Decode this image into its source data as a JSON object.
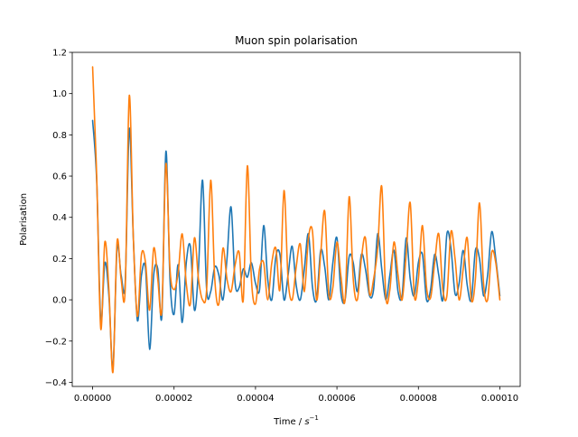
{
  "chart_data": {
    "type": "line",
    "title": "Muon spin polarisation",
    "xlabel_prefix": "Time / ",
    "xlabel_unit": "s",
    "xlabel_exponent": "−1",
    "ylabel": "Polarisation",
    "xlim": [
      -5e-06,
      0.000105
    ],
    "ylim": [
      -0.42,
      1.2
    ],
    "grid": false,
    "x_ticks": [
      {
        "value": 0.0,
        "label": "0.00000"
      },
      {
        "value": 2e-05,
        "label": "0.00002"
      },
      {
        "value": 4e-05,
        "label": "0.00004"
      },
      {
        "value": 6e-05,
        "label": "0.00006"
      },
      {
        "value": 8e-05,
        "label": "0.00008"
      },
      {
        "value": 0.0001,
        "label": "0.00010"
      }
    ],
    "y_ticks": [
      {
        "value": -0.4,
        "label": "−0.4"
      },
      {
        "value": -0.2,
        "label": "−0.2"
      },
      {
        "value": 0.0,
        "label": "0.0"
      },
      {
        "value": 0.2,
        "label": "0.2"
      },
      {
        "value": 0.4,
        "label": "0.4"
      },
      {
        "value": 0.6,
        "label": "0.6"
      },
      {
        "value": 0.8,
        "label": "0.8"
      },
      {
        "value": 1.0,
        "label": "1.0"
      },
      {
        "value": 1.2,
        "label": "1.2"
      }
    ],
    "series": [
      {
        "color": "#1f77b4",
        "points": [
          [
            0.0,
            0.87
          ],
          [
            1e-06,
            0.58
          ],
          [
            2e-06,
            -0.1
          ],
          [
            3e-06,
            0.18
          ],
          [
            4e-06,
            0.02
          ],
          [
            5e-06,
            -0.33
          ],
          [
            6e-06,
            0.25
          ],
          [
            7e-06,
            0.12
          ],
          [
            8e-06,
            0.08
          ],
          [
            9e-06,
            0.83
          ],
          [
            1e-05,
            0.3
          ],
          [
            1.1e-05,
            -0.1
          ],
          [
            1.2e-05,
            0.12
          ],
          [
            1.3e-05,
            0.15
          ],
          [
            1.4e-05,
            -0.24
          ],
          [
            1.5e-05,
            0.12
          ],
          [
            1.6e-05,
            0.15
          ],
          [
            1.7e-05,
            -0.08
          ],
          [
            1.8e-05,
            0.72
          ],
          [
            1.9e-05,
            0.1
          ],
          [
            2e-05,
            -0.07
          ],
          [
            2.1e-05,
            0.17
          ],
          [
            2.2e-05,
            -0.11
          ],
          [
            2.3e-05,
            0.18
          ],
          [
            2.4e-05,
            0.26
          ],
          [
            2.5e-05,
            -0.05
          ],
          [
            2.6e-05,
            0.15
          ],
          [
            2.7e-05,
            0.58
          ],
          [
            2.8e-05,
            0.05
          ],
          [
            2.9e-05,
            0.04
          ],
          [
            3e-05,
            0.16
          ],
          [
            3.1e-05,
            0.12
          ],
          [
            3.2e-05,
            0.0
          ],
          [
            3.3e-05,
            0.2
          ],
          [
            3.4e-05,
            0.45
          ],
          [
            3.5e-05,
            0.08
          ],
          [
            3.6e-05,
            0.06
          ],
          [
            3.7e-05,
            0.15
          ],
          [
            3.8e-05,
            0.11
          ],
          [
            3.9e-05,
            0.18
          ],
          [
            4e-05,
            0.08
          ],
          [
            4.1e-05,
            0.05
          ],
          [
            4.2e-05,
            0.36
          ],
          [
            4.3e-05,
            0.1
          ],
          [
            4.4e-05,
            0.0
          ],
          [
            4.5e-05,
            0.21
          ],
          [
            4.6e-05,
            0.22
          ],
          [
            4.7e-05,
            0.0
          ],
          [
            4.8e-05,
            0.12
          ],
          [
            4.9e-05,
            0.26
          ],
          [
            5e-05,
            0.07
          ],
          [
            5.1e-05,
            0.0
          ],
          [
            5.2e-05,
            0.15
          ],
          [
            5.3e-05,
            0.32
          ],
          [
            5.4e-05,
            0.06
          ],
          [
            5.5e-05,
            0.0
          ],
          [
            5.6e-05,
            0.24
          ],
          [
            5.7e-05,
            0.16
          ],
          [
            5.8e-05,
            0.0
          ],
          [
            5.9e-05,
            0.18
          ],
          [
            6e-05,
            0.3
          ],
          [
            6.1e-05,
            0.03
          ],
          [
            6.2e-05,
            0.0
          ],
          [
            6.3e-05,
            0.21
          ],
          [
            6.4e-05,
            0.18
          ],
          [
            6.5e-05,
            0.04
          ],
          [
            6.6e-05,
            0.22
          ],
          [
            6.7e-05,
            0.15
          ],
          [
            6.8e-05,
            0.02
          ],
          [
            6.9e-05,
            0.05
          ],
          [
            7e-05,
            0.32
          ],
          [
            7.1e-05,
            0.15
          ],
          [
            7.2e-05,
            0.0
          ],
          [
            7.3e-05,
            0.12
          ],
          [
            7.4e-05,
            0.24
          ],
          [
            7.5e-05,
            0.04
          ],
          [
            7.6e-05,
            0.02
          ],
          [
            7.7e-05,
            0.3
          ],
          [
            7.8e-05,
            0.1
          ],
          [
            7.9e-05,
            0.02
          ],
          [
            8e-05,
            0.18
          ],
          [
            8.1e-05,
            0.22
          ],
          [
            8.2e-05,
            0.0
          ],
          [
            8.3e-05,
            0.05
          ],
          [
            8.4e-05,
            0.22
          ],
          [
            8.5e-05,
            0.12
          ],
          [
            8.6e-05,
            0.0
          ],
          [
            8.7e-05,
            0.32
          ],
          [
            8.8e-05,
            0.25
          ],
          [
            8.9e-05,
            0.03
          ],
          [
            9e-05,
            0.08
          ],
          [
            9.1e-05,
            0.24
          ],
          [
            9.2e-05,
            0.07
          ],
          [
            9.3e-05,
            0.0
          ],
          [
            9.4e-05,
            0.24
          ],
          [
            9.5e-05,
            0.2
          ],
          [
            9.6e-05,
            0.02
          ],
          [
            9.7e-05,
            0.12
          ],
          [
            9.8e-05,
            0.33
          ],
          [
            9.9e-05,
            0.2
          ],
          [
            0.0001,
            0.02
          ]
        ]
      },
      {
        "color": "#ff7f0e",
        "points": [
          [
            0.0,
            1.13
          ],
          [
            1e-06,
            0.6
          ],
          [
            2e-06,
            -0.14
          ],
          [
            3e-06,
            0.28
          ],
          [
            4e-06,
            0.05
          ],
          [
            5e-06,
            -0.35
          ],
          [
            6e-06,
            0.28
          ],
          [
            7e-06,
            0.1
          ],
          [
            8e-06,
            0.05
          ],
          [
            9e-06,
            0.99
          ],
          [
            1e-05,
            0.3
          ],
          [
            1.1e-05,
            -0.08
          ],
          [
            1.2e-05,
            0.22
          ],
          [
            1.3e-05,
            0.18
          ],
          [
            1.4e-05,
            -0.05
          ],
          [
            1.5e-05,
            0.25
          ],
          [
            1.6e-05,
            0.1
          ],
          [
            1.7e-05,
            -0.05
          ],
          [
            1.8e-05,
            0.66
          ],
          [
            1.9e-05,
            0.15
          ],
          [
            2e-05,
            0.05
          ],
          [
            2.1e-05,
            0.13
          ],
          [
            2.2e-05,
            0.32
          ],
          [
            2.3e-05,
            0.08
          ],
          [
            2.4e-05,
            -0.02
          ],
          [
            2.5e-05,
            0.3
          ],
          [
            2.6e-05,
            0.1
          ],
          [
            2.7e-05,
            0.0
          ],
          [
            2.8e-05,
            0.05
          ],
          [
            2.9e-05,
            0.58
          ],
          [
            3e-05,
            0.1
          ],
          [
            3.1e-05,
            -0.02
          ],
          [
            3.2e-05,
            0.25
          ],
          [
            3.3e-05,
            0.1
          ],
          [
            3.4e-05,
            0.04
          ],
          [
            3.5e-05,
            0.17
          ],
          [
            3.6e-05,
            0.23
          ],
          [
            3.7e-05,
            0.0
          ],
          [
            3.8e-05,
            0.65
          ],
          [
            3.9e-05,
            0.1
          ],
          [
            4e-05,
            -0.02
          ],
          [
            4.1e-05,
            0.15
          ],
          [
            4.2e-05,
            0.18
          ],
          [
            4.3e-05,
            0.0
          ],
          [
            4.4e-05,
            0.18
          ],
          [
            4.5e-05,
            0.25
          ],
          [
            4.6e-05,
            0.05
          ],
          [
            4.7e-05,
            0.53
          ],
          [
            4.8e-05,
            0.1
          ],
          [
            4.9e-05,
            0.0
          ],
          [
            5e-05,
            0.16
          ],
          [
            5.1e-05,
            0.27
          ],
          [
            5.2e-05,
            0.04
          ],
          [
            5.3e-05,
            0.3
          ],
          [
            5.4e-05,
            0.33
          ],
          [
            5.5e-05,
            0.0
          ],
          [
            5.6e-05,
            0.22
          ],
          [
            5.7e-05,
            0.43
          ],
          [
            5.8e-05,
            0.03
          ],
          [
            5.9e-05,
            0.06
          ],
          [
            6e-05,
            0.28
          ],
          [
            6.1e-05,
            0.11
          ],
          [
            6.2e-05,
            0.0
          ],
          [
            6.3e-05,
            0.5
          ],
          [
            6.4e-05,
            0.1
          ],
          [
            6.5e-05,
            0.0
          ],
          [
            6.6e-05,
            0.2
          ],
          [
            6.7e-05,
            0.3
          ],
          [
            6.8e-05,
            0.03
          ],
          [
            6.9e-05,
            0.1
          ],
          [
            7e-05,
            0.25
          ],
          [
            7.1e-05,
            0.55
          ],
          [
            7.2e-05,
            0.02
          ],
          [
            7.3e-05,
            0.05
          ],
          [
            7.4e-05,
            0.28
          ],
          [
            7.5e-05,
            0.12
          ],
          [
            7.6e-05,
            0.0
          ],
          [
            7.7e-05,
            0.22
          ],
          [
            7.8e-05,
            0.47
          ],
          [
            7.9e-05,
            0.02
          ],
          [
            8e-05,
            0.1
          ],
          [
            8.1e-05,
            0.36
          ],
          [
            8.2e-05,
            0.06
          ],
          [
            8.3e-05,
            0.01
          ],
          [
            8.4e-05,
            0.18
          ],
          [
            8.5e-05,
            0.32
          ],
          [
            8.6e-05,
            0.05
          ],
          [
            8.7e-05,
            0.02
          ],
          [
            8.8e-05,
            0.33
          ],
          [
            8.9e-05,
            0.2
          ],
          [
            9e-05,
            0.0
          ],
          [
            9.1e-05,
            0.15
          ],
          [
            9.2e-05,
            0.3
          ],
          [
            9.3e-05,
            0.0
          ],
          [
            9.4e-05,
            0.1
          ],
          [
            9.5e-05,
            0.47
          ],
          [
            9.6e-05,
            0.08
          ],
          [
            9.7e-05,
            0.0
          ],
          [
            9.8e-05,
            0.23
          ],
          [
            9.9e-05,
            0.18
          ],
          [
            0.0001,
            0.0
          ]
        ]
      }
    ]
  }
}
